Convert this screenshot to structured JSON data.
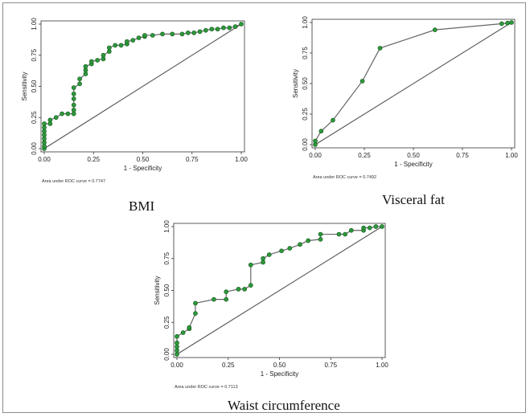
{
  "chart_data": [
    {
      "type": "line",
      "title": "",
      "caption": "BMI",
      "xlabel": "1 - Specificity",
      "ylabel": "Sensitivity",
      "xlim": [
        0,
        1
      ],
      "ylim": [
        0,
        1
      ],
      "xticks": [
        "0.00",
        "0.25",
        "0.50",
        "0.75",
        "1.00"
      ],
      "yticks": [
        "0.00",
        "0.25",
        "0.50",
        "0.75",
        "1.00"
      ],
      "annotation": "Area under ROC curve = 0.7747",
      "reference_line": true,
      "x": [
        0,
        0,
        0,
        0,
        0,
        0,
        0,
        0,
        0.03,
        0.03,
        0.06,
        0.09,
        0.12,
        0.15,
        0.15,
        0.15,
        0.15,
        0.15,
        0.15,
        0.18,
        0.18,
        0.21,
        0.21,
        0.21,
        0.24,
        0.24,
        0.27,
        0.3,
        0.3,
        0.33,
        0.33,
        0.36,
        0.39,
        0.42,
        0.42,
        0.45,
        0.48,
        0.51,
        0.51,
        0.55,
        0.6,
        0.65,
        0.7,
        0.73,
        0.76,
        0.79,
        0.82,
        0.85,
        0.88,
        0.91,
        0.94,
        0.97,
        1.0
      ],
      "y": [
        0,
        0.02,
        0.05,
        0.08,
        0.11,
        0.14,
        0.17,
        0.2,
        0.2,
        0.23,
        0.25,
        0.28,
        0.28,
        0.28,
        0.31,
        0.35,
        0.4,
        0.44,
        0.49,
        0.52,
        0.56,
        0.6,
        0.63,
        0.66,
        0.68,
        0.7,
        0.71,
        0.72,
        0.75,
        0.78,
        0.81,
        0.83,
        0.83,
        0.84,
        0.86,
        0.87,
        0.89,
        0.9,
        0.91,
        0.91,
        0.92,
        0.92,
        0.92,
        0.93,
        0.93,
        0.94,
        0.95,
        0.96,
        0.96,
        0.97,
        0.97,
        0.98,
        1.0
      ]
    },
    {
      "type": "line",
      "title": "",
      "caption": "Visceral fat",
      "xlabel": "1 - Specificity",
      "ylabel": "Sensitivity",
      "xlim": [
        0,
        1
      ],
      "ylim": [
        0,
        1
      ],
      "xticks": [
        "0.00",
        "0.25",
        "0.50",
        "0.75",
        "1.00"
      ],
      "yticks": [
        "0.00",
        "0.25",
        "0.50",
        "0.75",
        "1.00"
      ],
      "annotation": "Area under ROC curve = 0.7492",
      "reference_line": true,
      "x": [
        0,
        0,
        0.03,
        0.09,
        0.24,
        0.33,
        0.61,
        0.95,
        0.98,
        1.0
      ],
      "y": [
        0,
        0.03,
        0.11,
        0.2,
        0.52,
        0.79,
        0.94,
        0.99,
        0.995,
        1.0
      ]
    },
    {
      "type": "line",
      "title": "",
      "caption": "Waist circumference",
      "xlabel": "1 - Specificity",
      "ylabel": "Sensitivity",
      "xlim": [
        0,
        1
      ],
      "ylim": [
        0,
        1
      ],
      "xticks": [
        "0.00",
        "0.25",
        "0.50",
        "0.75",
        "1.00"
      ],
      "yticks": [
        "0.00",
        "0.25",
        "0.50",
        "0.75",
        "1.00"
      ],
      "annotation": "Area under ROC curve = 0.7113",
      "reference_line": true,
      "x": [
        0,
        0,
        0,
        0,
        0,
        0.03,
        0.06,
        0.06,
        0.09,
        0.09,
        0.18,
        0.24,
        0.24,
        0.3,
        0.33,
        0.36,
        0.36,
        0.42,
        0.42,
        0.45,
        0.51,
        0.55,
        0.6,
        0.64,
        0.7,
        0.7,
        0.79,
        0.82,
        0.85,
        0.91,
        0.91,
        0.94,
        0.97,
        1.0
      ],
      "y": [
        0,
        0.03,
        0.06,
        0.09,
        0.14,
        0.17,
        0.2,
        0.21,
        0.32,
        0.4,
        0.43,
        0.43,
        0.49,
        0.51,
        0.51,
        0.54,
        0.7,
        0.72,
        0.75,
        0.78,
        0.81,
        0.83,
        0.86,
        0.89,
        0.9,
        0.94,
        0.94,
        0.94,
        0.97,
        0.97,
        0.99,
        0.99,
        1.0,
        1.0
      ]
    }
  ]
}
